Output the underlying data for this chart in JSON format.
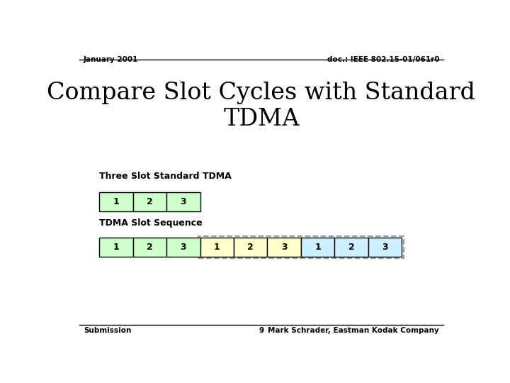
{
  "header_left": "January 2001",
  "header_right": "doc.: IEEE 802.15-01/061r0",
  "title": "Compare Slot Cycles with Standard\nTDMA",
  "section1_label": "Three Slot Standard TDMA",
  "section2_label": "TDMA Slot Sequence",
  "footer_left": "Submission",
  "footer_center": "9",
  "footer_right": "Mark Schrader, Eastman Kodak Company",
  "row1_labels": [
    "1",
    "2",
    "3"
  ],
  "row1_colors": [
    "#ccffcc",
    "#ccffcc",
    "#ccffcc"
  ],
  "row2_labels": [
    "1",
    "2",
    "3",
    "1",
    "2",
    "3",
    "1",
    "2",
    "3"
  ],
  "row2_colors": [
    "#ccffcc",
    "#ccffcc",
    "#ccffcc",
    "#ffffcc",
    "#ffffcc",
    "#ffffcc",
    "#ccf0ff",
    "#ccf0ff",
    "#ccf0ff"
  ],
  "box_edge_color": "#000000",
  "dashed_border_color": "#999999",
  "bg_color": "#ffffff"
}
